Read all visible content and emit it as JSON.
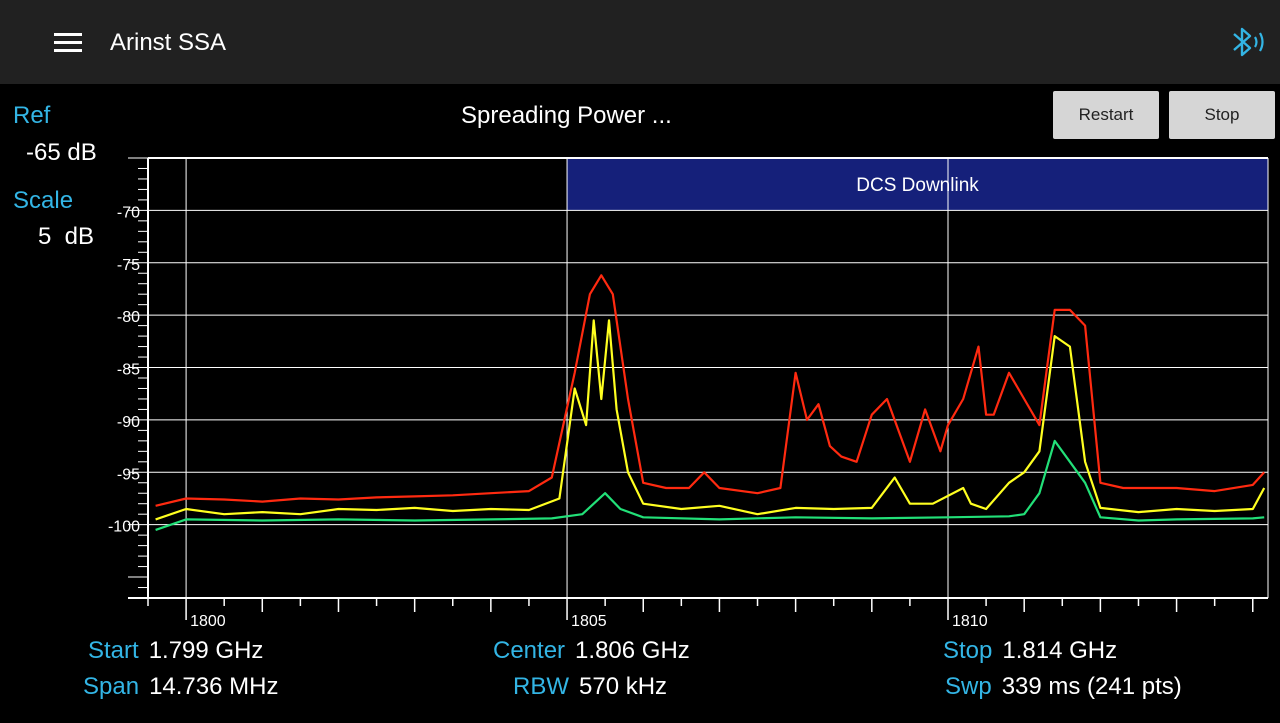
{
  "app": {
    "title": "Arinst SSA"
  },
  "status": "Spreading Power ...",
  "buttons": {
    "restart": "Restart",
    "stop": "Stop"
  },
  "ref": {
    "label": "Ref",
    "value": "-65 dB"
  },
  "scale": {
    "label": "Scale",
    "value": "5  dB"
  },
  "info": {
    "start_label": "Start",
    "start_value": "1.799 GHz",
    "span_label": "Span",
    "span_value": "14.736 MHz",
    "center_label": "Center",
    "center_value": "1.806 GHz",
    "rbw_label": "RBW",
    "rbw_value": "570 kHz",
    "stop_label": "Stop",
    "stop_value": "1.814 GHz",
    "swp_label": "Swp",
    "swp_value": "339 ms (241 pts)"
  },
  "colors": {
    "accent": "#33b5e5",
    "band": "#15207a",
    "trace_max": "#ff2a10",
    "trace_live": "#ffff20",
    "trace_avg": "#22e078"
  },
  "chart_data": {
    "type": "line",
    "xlim": [
      1799.5,
      1814.2
    ],
    "ylim": [
      -107,
      -65
    ],
    "x_ticks": [
      1800,
      1805,
      1810
    ],
    "y_ticks": [
      -70,
      -75,
      -80,
      -85,
      -90,
      -95,
      -100
    ],
    "grid": true,
    "band": {
      "label": "DCS Downlink",
      "x_start": 1805,
      "x_end": 1814.2,
      "y_top": -65,
      "y_bottom": -70
    },
    "series": [
      {
        "color": "#ff2a10",
        "x": [
          1799.6,
          1800.0,
          1800.5,
          1801.0,
          1801.5,
          1802.0,
          1802.5,
          1803.0,
          1803.5,
          1804.0,
          1804.5,
          1804.8,
          1805.1,
          1805.3,
          1805.45,
          1805.6,
          1805.8,
          1806.0,
          1806.3,
          1806.6,
          1806.8,
          1807.0,
          1807.5,
          1807.8,
          1808.0,
          1808.15,
          1808.3,
          1808.45,
          1808.6,
          1808.8,
          1809.0,
          1809.2,
          1809.5,
          1809.7,
          1809.9,
          1810.0,
          1810.2,
          1810.4,
          1810.5,
          1810.6,
          1810.8,
          1811.0,
          1811.2,
          1811.4,
          1811.6,
          1811.8,
          1812.0,
          1812.3,
          1812.6,
          1813.0,
          1813.5,
          1814.0,
          1814.15
        ],
        "y": [
          -98.2,
          -97.5,
          -97.6,
          -97.8,
          -97.5,
          -97.6,
          -97.4,
          -97.3,
          -97.2,
          -97.0,
          -96.8,
          -95.5,
          -85.5,
          -78.0,
          -76.2,
          -78.0,
          -88.0,
          -96.0,
          -96.5,
          -96.5,
          -95.0,
          -96.5,
          -97.0,
          -96.5,
          -85.5,
          -90.0,
          -88.5,
          -92.5,
          -93.5,
          -94.0,
          -89.5,
          -88.0,
          -94.0,
          -89.0,
          -93.0,
          -90.5,
          -88.0,
          -83.0,
          -89.5,
          -89.5,
          -85.5,
          -88.0,
          -90.5,
          -79.5,
          -79.5,
          -81.0,
          -96.0,
          -96.5,
          -96.5,
          -96.5,
          -96.8,
          -96.2,
          -95.0
        ]
      },
      {
        "color": "#ffff20",
        "x": [
          1799.6,
          1800.0,
          1800.5,
          1801.0,
          1801.5,
          1802.0,
          1802.5,
          1803.0,
          1803.5,
          1804.0,
          1804.5,
          1804.9,
          1805.1,
          1805.25,
          1805.35,
          1805.45,
          1805.55,
          1805.65,
          1805.8,
          1806.0,
          1806.5,
          1807.0,
          1807.5,
          1808.0,
          1808.5,
          1809.0,
          1809.3,
          1809.5,
          1809.8,
          1810.2,
          1810.3,
          1810.5,
          1810.8,
          1811.0,
          1811.2,
          1811.4,
          1811.6,
          1811.8,
          1812.0,
          1812.5,
          1813.0,
          1813.5,
          1814.0,
          1814.15
        ],
        "y": [
          -99.5,
          -98.5,
          -99.0,
          -98.8,
          -99.0,
          -98.5,
          -98.6,
          -98.4,
          -98.7,
          -98.5,
          -98.6,
          -97.5,
          -87.0,
          -90.5,
          -80.5,
          -88.0,
          -80.5,
          -89.0,
          -95.0,
          -98.0,
          -98.5,
          -98.2,
          -99.0,
          -98.4,
          -98.5,
          -98.4,
          -95.5,
          -98.0,
          -98.0,
          -96.5,
          -98.0,
          -98.5,
          -96.0,
          -95.0,
          -93.0,
          -82.0,
          -83.0,
          -94.0,
          -98.4,
          -98.8,
          -98.5,
          -98.7,
          -98.5,
          -96.5
        ]
      },
      {
        "color": "#22e078",
        "x": [
          1799.6,
          1800.0,
          1801.0,
          1802.0,
          1803.0,
          1804.0,
          1804.8,
          1805.2,
          1805.5,
          1805.7,
          1806.0,
          1807.0,
          1808.0,
          1809.0,
          1810.0,
          1810.8,
          1811.0,
          1811.2,
          1811.4,
          1811.6,
          1811.8,
          1812.0,
          1812.5,
          1813.0,
          1814.0,
          1814.15
        ],
        "y": [
          -100.5,
          -99.5,
          -99.6,
          -99.5,
          -99.6,
          -99.5,
          -99.4,
          -99.0,
          -97.0,
          -98.5,
          -99.3,
          -99.5,
          -99.3,
          -99.4,
          -99.3,
          -99.2,
          -99.0,
          -97.0,
          -92.0,
          -94.0,
          -96.0,
          -99.3,
          -99.6,
          -99.5,
          -99.4,
          -99.3
        ]
      }
    ]
  }
}
